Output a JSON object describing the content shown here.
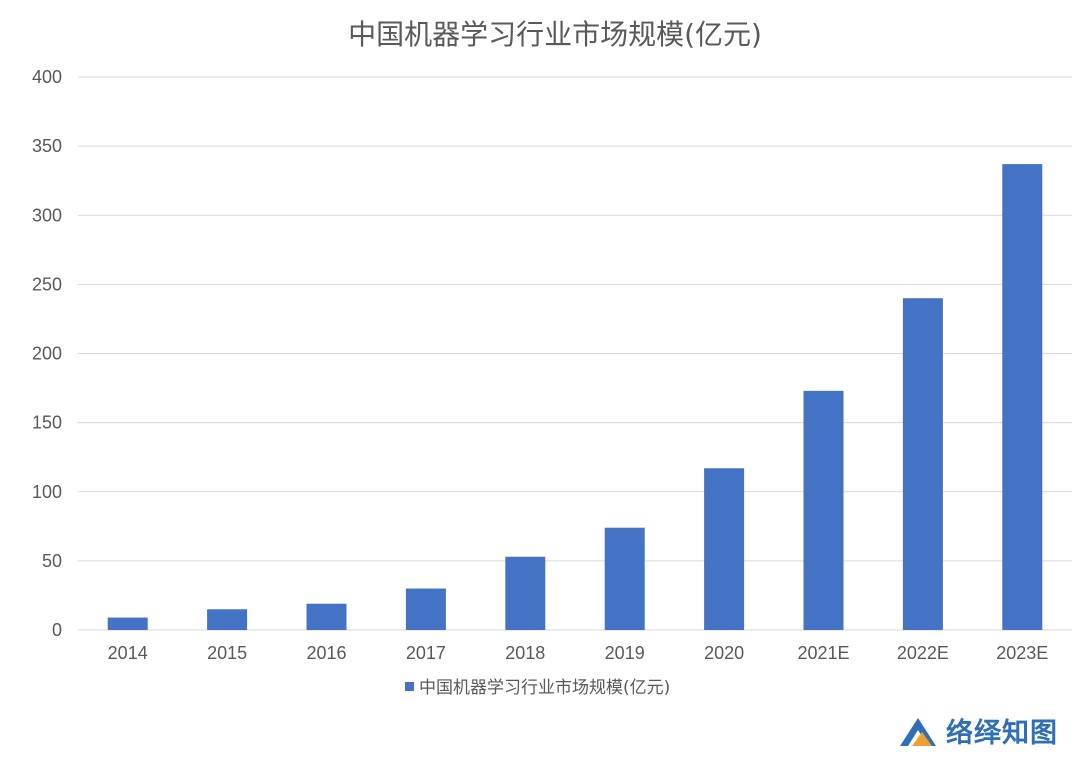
{
  "chart_data": {
    "type": "bar",
    "title": "中国机器学习行业市场规模(亿元)",
    "categories": [
      "2014",
      "2015",
      "2016",
      "2017",
      "2018",
      "2019",
      "2020",
      "2021E",
      "2022E",
      "2023E"
    ],
    "series": [
      {
        "name": "中国机器学习行业市场规模(亿元)",
        "values": [
          9,
          15,
          19,
          30,
          53,
          74,
          117,
          173,
          240,
          337
        ],
        "color": "#4472c4"
      }
    ],
    "ylim": [
      0,
      400
    ],
    "yticks": [
      0,
      50,
      100,
      150,
      200,
      250,
      300,
      350,
      400
    ],
    "grid": true,
    "legend_position": "bottom"
  },
  "watermark": {
    "text": "络绎知图",
    "icon": "mountain-logo-icon",
    "color": "#2e6fb7",
    "accent_color": "#f0a030"
  }
}
